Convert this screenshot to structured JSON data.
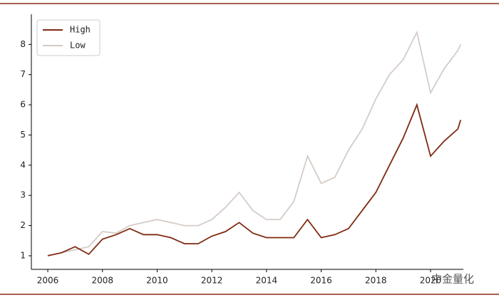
{
  "chart_data": {
    "type": "line",
    "x": [
      2006,
      2006.5,
      2007,
      2007.5,
      2008,
      2008.5,
      2009,
      2009.5,
      2010,
      2010.5,
      2011,
      2011.5,
      2012,
      2012.5,
      2013,
      2013.5,
      2014,
      2014.5,
      2015,
      2015.5,
      2016,
      2016.5,
      2017,
      2017.5,
      2018,
      2018.5,
      2019,
      2019.5,
      2020,
      2020.5,
      2021,
      2021.1
    ],
    "series": [
      {
        "name": "High",
        "color": "#7f2a10",
        "values": [
          1.0,
          1.1,
          1.3,
          1.05,
          1.55,
          1.7,
          1.9,
          1.7,
          1.7,
          1.6,
          1.4,
          1.4,
          1.65,
          1.8,
          2.1,
          1.75,
          1.6,
          1.6,
          1.6,
          2.2,
          1.6,
          1.7,
          1.9,
          2.5,
          3.1,
          4.0,
          4.9,
          6.0,
          4.3,
          4.8,
          5.2,
          5.5
        ]
      },
      {
        "name": "Low",
        "color": "#d5ccc7",
        "values": [
          1.0,
          1.1,
          1.2,
          1.3,
          1.8,
          1.75,
          2.0,
          2.1,
          2.2,
          2.1,
          2.0,
          2.0,
          2.2,
          2.6,
          3.1,
          2.5,
          2.2,
          2.2,
          2.8,
          4.3,
          3.4,
          3.6,
          4.5,
          5.2,
          6.2,
          7.0,
          7.5,
          8.4,
          6.4,
          7.2,
          7.8,
          8.0
        ]
      }
    ],
    "xlim": [
      2005.4,
      2021.2
    ],
    "xticks": [
      2006,
      2008,
      2010,
      2012,
      2014,
      2016,
      2018,
      2020
    ],
    "ylim": [
      0.55,
      9.0
    ],
    "yticks": [
      1,
      2,
      3,
      4,
      5,
      6,
      7,
      8
    ],
    "grid": false,
    "legend": "upper-left",
    "watermark": "中金量化"
  }
}
